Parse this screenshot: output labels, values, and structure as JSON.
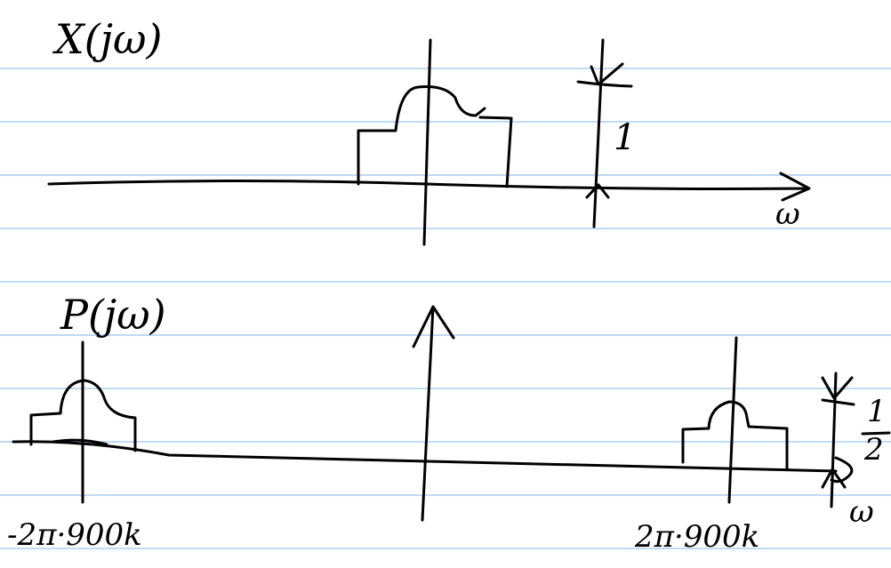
{
  "top": {
    "label": "X(jω)",
    "height_label": "1",
    "axis_label": "ω"
  },
  "bottom": {
    "label": "P(jω)",
    "height_numerator": "1",
    "height_denominator": "2",
    "axis_label": "ω",
    "left_freq": "-2π·900k",
    "right_freq": "2π·900k"
  }
}
